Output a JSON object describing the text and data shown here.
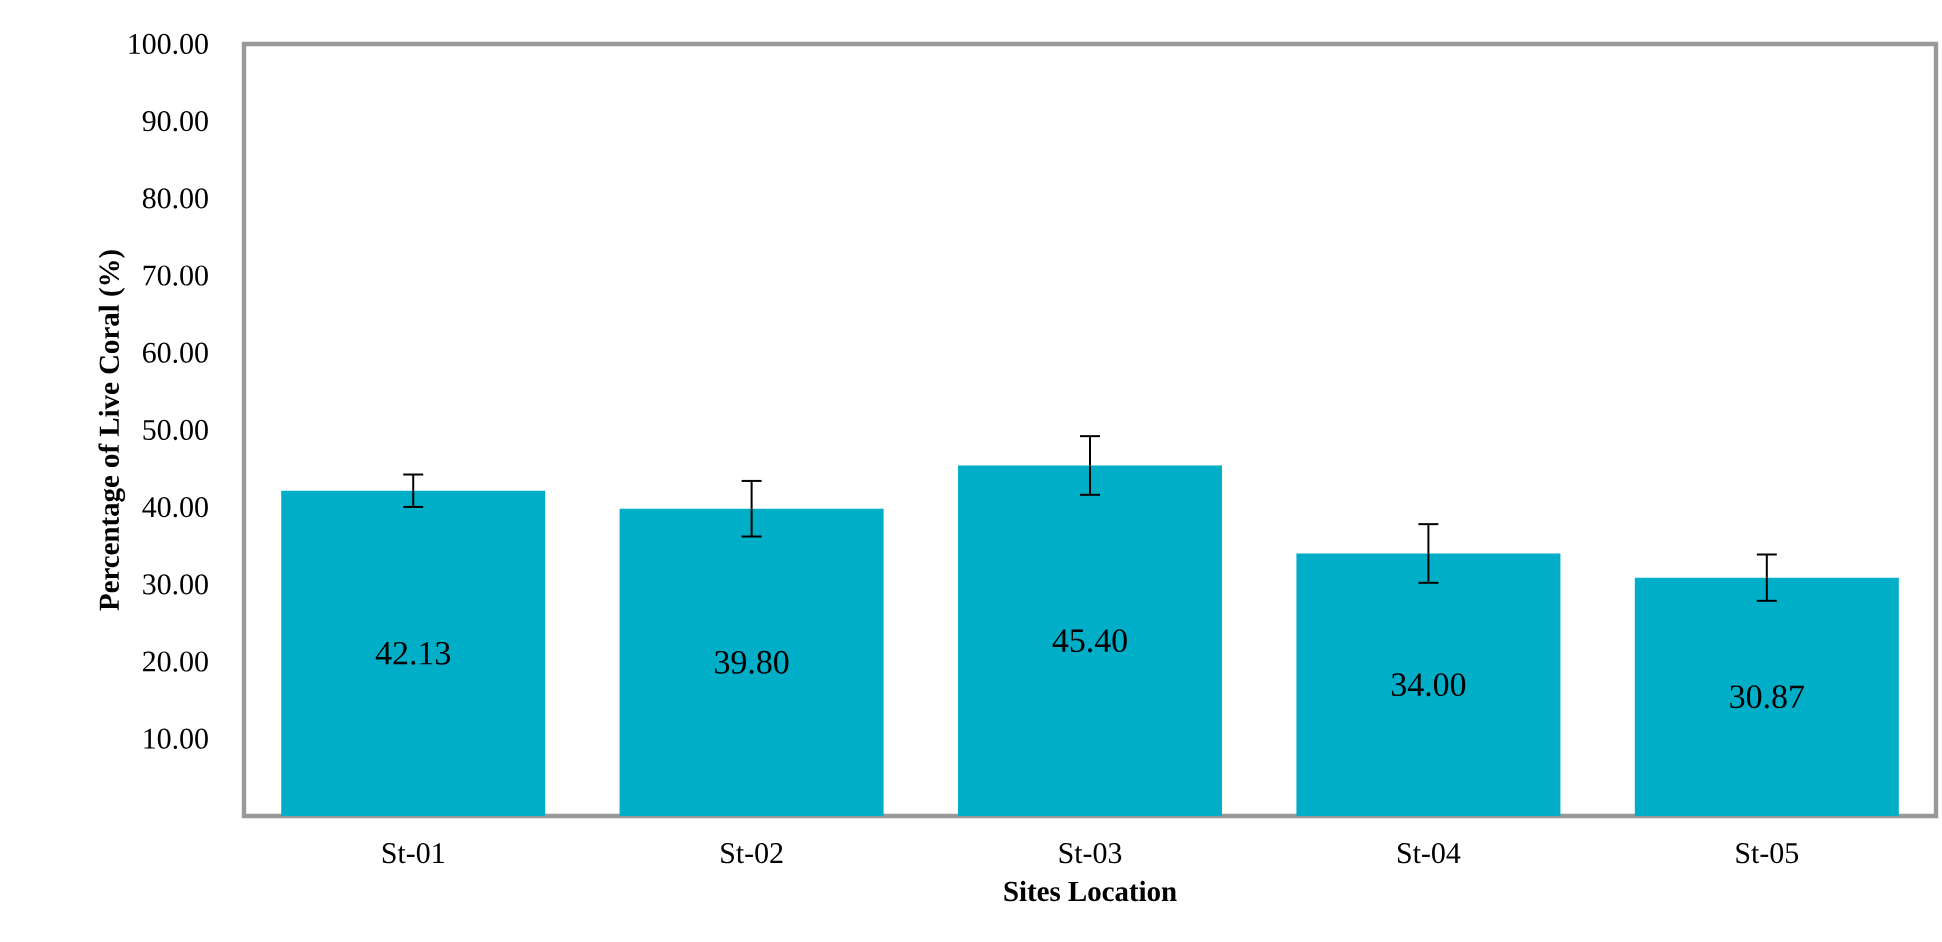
{
  "chart_data": {
    "type": "bar",
    "xlabel": "Sites Location",
    "ylabel": "Percentage of Live Coral (%)",
    "categories": [
      "St-01",
      "St-02",
      "St-03",
      "St-04",
      "St-05"
    ],
    "values": [
      42.13,
      39.8,
      45.4,
      34.0,
      30.87
    ],
    "errors": [
      2.1,
      3.6,
      3.8,
      3.8,
      3.0
    ],
    "value_labels": [
      "42.13",
      "39.80",
      "45.40",
      "34.00",
      "30.87"
    ],
    "color": "#00aec8",
    "ylim": [
      0,
      100
    ],
    "yticks": [
      {
        "value": 10,
        "label": "10.00"
      },
      {
        "value": 20,
        "label": "20.00"
      },
      {
        "value": 30,
        "label": "30.00"
      },
      {
        "value": 40,
        "label": "40.00"
      },
      {
        "value": 50,
        "label": "50.00"
      },
      {
        "value": 60,
        "label": "60.00"
      },
      {
        "value": 70,
        "label": "70.00"
      },
      {
        "value": 80,
        "label": "80.00"
      },
      {
        "value": 90,
        "label": "90.00"
      },
      {
        "value": 100,
        "label": "100.00"
      }
    ]
  }
}
